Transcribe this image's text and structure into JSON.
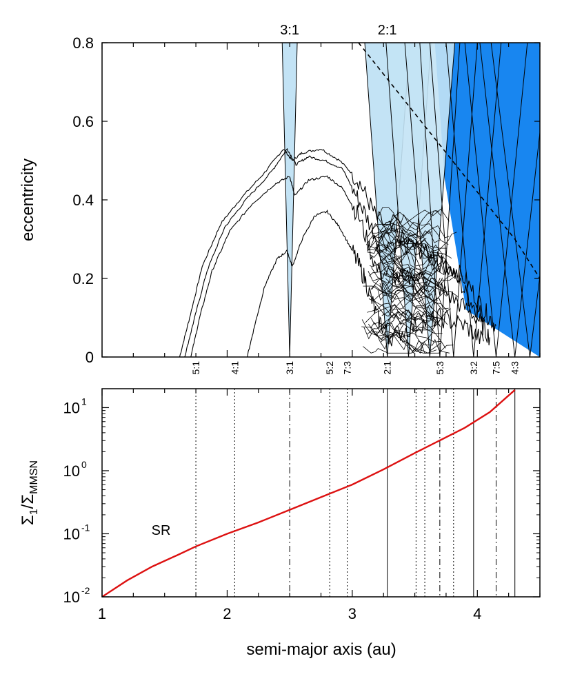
{
  "chart_data": [
    {
      "type": "line",
      "panel": "top",
      "ylabel": "eccentricity",
      "xlim": [
        1,
        4.5
      ],
      "ylim": [
        0,
        0.8
      ],
      "yticks": [
        0,
        0.2,
        0.4,
        0.6,
        0.8
      ],
      "ytick_labels": [
        "0",
        "0.2",
        "0.4",
        "0.6",
        "0.8"
      ],
      "top_labels": [
        {
          "text": "3:1",
          "a": 2.5
        },
        {
          "text": "2:1",
          "a": 3.28
        }
      ],
      "resonance_labels": [
        {
          "text": "5:1",
          "a": 1.75
        },
        {
          "text": "4:1",
          "a": 2.06
        },
        {
          "text": "3:1",
          "a": 2.5
        },
        {
          "text": "5:2",
          "a": 2.82
        },
        {
          "text": "7:3",
          "a": 2.96
        },
        {
          "text": "2:1",
          "a": 3.28
        },
        {
          "text": "5:3",
          "a": 3.7
        },
        {
          "text": "3:2",
          "a": 3.97
        },
        {
          "text": "7:5",
          "a": 4.15
        },
        {
          "text": "4:3",
          "a": 4.3
        }
      ],
      "light_regions": [
        {
          "a_center": 2.5,
          "half_width_at_top": 0.06
        },
        {
          "a_center": 3.28,
          "half_width_at_top": 0.18
        }
      ],
      "dark_region_start_a": 3.66,
      "dashed_curve": [
        [
          3.05,
          0.8
        ],
        [
          3.4,
          0.66
        ],
        [
          3.8,
          0.5
        ],
        [
          4.1,
          0.38
        ],
        [
          4.3,
          0.3
        ],
        [
          4.5,
          0.2
        ]
      ],
      "series": [
        {
          "values": [
            [
              1.62,
              0.0
            ],
            [
              1.7,
              0.1
            ],
            [
              1.8,
              0.23
            ],
            [
              1.95,
              0.34
            ],
            [
              2.1,
              0.4
            ],
            [
              2.3,
              0.47
            ],
            [
              2.45,
              0.53
            ],
            [
              2.52,
              0.5
            ],
            [
              2.6,
              0.52
            ],
            [
              2.75,
              0.53
            ],
            [
              2.9,
              0.5
            ],
            [
              3.05,
              0.45
            ],
            [
              3.2,
              0.35
            ],
            [
              3.4,
              0.3
            ],
            [
              3.6,
              0.26
            ],
            [
              3.8,
              0.22
            ],
            [
              3.95,
              0.14
            ],
            [
              4.05,
              0.1
            ]
          ]
        },
        {
          "values": [
            [
              1.66,
              0.0
            ],
            [
              1.74,
              0.1
            ],
            [
              1.84,
              0.22
            ],
            [
              1.98,
              0.33
            ],
            [
              2.15,
              0.4
            ],
            [
              2.35,
              0.47
            ],
            [
              2.48,
              0.53
            ],
            [
              2.55,
              0.49
            ],
            [
              2.65,
              0.51
            ],
            [
              2.78,
              0.5
            ],
            [
              2.92,
              0.48
            ],
            [
              3.05,
              0.4
            ],
            [
              3.2,
              0.3
            ],
            [
              3.45,
              0.28
            ],
            [
              3.7,
              0.25
            ],
            [
              3.9,
              0.2
            ],
            [
              4.05,
              0.12
            ],
            [
              4.15,
              0.08
            ]
          ]
        },
        {
          "values": [
            [
              1.71,
              0.0
            ],
            [
              1.78,
              0.1
            ],
            [
              1.88,
              0.22
            ],
            [
              2.02,
              0.32
            ],
            [
              2.2,
              0.39
            ],
            [
              2.38,
              0.44
            ],
            [
              2.5,
              0.46
            ],
            [
              2.54,
              0.41
            ],
            [
              2.65,
              0.45
            ],
            [
              2.8,
              0.46
            ],
            [
              2.92,
              0.43
            ],
            [
              3.05,
              0.36
            ],
            [
              3.2,
              0.22
            ],
            [
              3.4,
              0.2
            ],
            [
              3.6,
              0.2
            ],
            [
              3.8,
              0.15
            ],
            [
              4.0,
              0.1
            ],
            [
              4.1,
              0.05
            ]
          ]
        },
        {
          "values": [
            [
              2.16,
              0.0
            ],
            [
              2.22,
              0.08
            ],
            [
              2.3,
              0.18
            ],
            [
              2.4,
              0.25
            ],
            [
              2.48,
              0.27
            ],
            [
              2.52,
              0.23
            ],
            [
              2.6,
              0.3
            ],
            [
              2.7,
              0.36
            ],
            [
              2.8,
              0.37
            ],
            [
              2.9,
              0.33
            ],
            [
              3.0,
              0.27
            ],
            [
              3.1,
              0.2
            ],
            [
              3.2,
              0.1
            ],
            [
              3.3,
              0.05
            ],
            [
              3.5,
              0.08
            ],
            [
              3.7,
              0.1
            ],
            [
              3.9,
              0.08
            ],
            [
              4.05,
              0.04
            ]
          ]
        }
      ]
    },
    {
      "type": "line",
      "panel": "bottom",
      "xlabel": "semi-major axis (au)",
      "ylabel_main": "Σ",
      "ylabel_sub1": "1",
      "ylabel_slash": "/Σ",
      "ylabel_sub2": "MMSN",
      "xlim": [
        1,
        4.5
      ],
      "xticks": [
        1,
        2,
        3,
        4
      ],
      "xtick_labels": [
        "1",
        "2",
        "3",
        "4"
      ],
      "ylim_log10": [
        -2,
        1.3
      ],
      "ytick_log10": [
        -2,
        -1,
        0,
        1
      ],
      "ytick_base": "10",
      "ytick_exponents": [
        "-2",
        "-1",
        "0",
        "1"
      ],
      "annotation": {
        "text": "SR",
        "a": 1.45,
        "log10y": -1.15
      },
      "series": [
        {
          "name": "SR",
          "color": "#dd1111",
          "values": [
            [
              1.0,
              -2.0
            ],
            [
              1.2,
              -1.74
            ],
            [
              1.4,
              -1.52
            ],
            [
              1.6,
              -1.34
            ],
            [
              1.75,
              -1.2
            ],
            [
              2.0,
              -1.0
            ],
            [
              2.25,
              -0.82
            ],
            [
              2.5,
              -0.62
            ],
            [
              2.75,
              -0.42
            ],
            [
              3.0,
              -0.22
            ],
            [
              3.25,
              0.02
            ],
            [
              3.5,
              0.28
            ],
            [
              3.7,
              0.48
            ],
            [
              3.9,
              0.68
            ],
            [
              4.1,
              0.93
            ],
            [
              4.3,
              1.28
            ]
          ]
        }
      ],
      "vlines": [
        {
          "a": 1.75,
          "style": "dotted"
        },
        {
          "a": 2.06,
          "style": "dotted"
        },
        {
          "a": 2.5,
          "style": "dashdot"
        },
        {
          "a": 2.82,
          "style": "dotted"
        },
        {
          "a": 2.96,
          "style": "dotted"
        },
        {
          "a": 3.28,
          "style": "solid"
        },
        {
          "a": 3.51,
          "style": "dotted"
        },
        {
          "a": 3.58,
          "style": "dotted"
        },
        {
          "a": 3.7,
          "style": "dashdot"
        },
        {
          "a": 3.81,
          "style": "dotted"
        },
        {
          "a": 3.97,
          "style": "solid"
        },
        {
          "a": 4.15,
          "style": "dashdot"
        },
        {
          "a": 4.3,
          "style": "solid"
        }
      ]
    }
  ],
  "colors": {
    "light_blue": "#c3e3f5",
    "dark_blue": "#1886f0",
    "ink": "#000000",
    "sr_curve": "#dd1111"
  }
}
